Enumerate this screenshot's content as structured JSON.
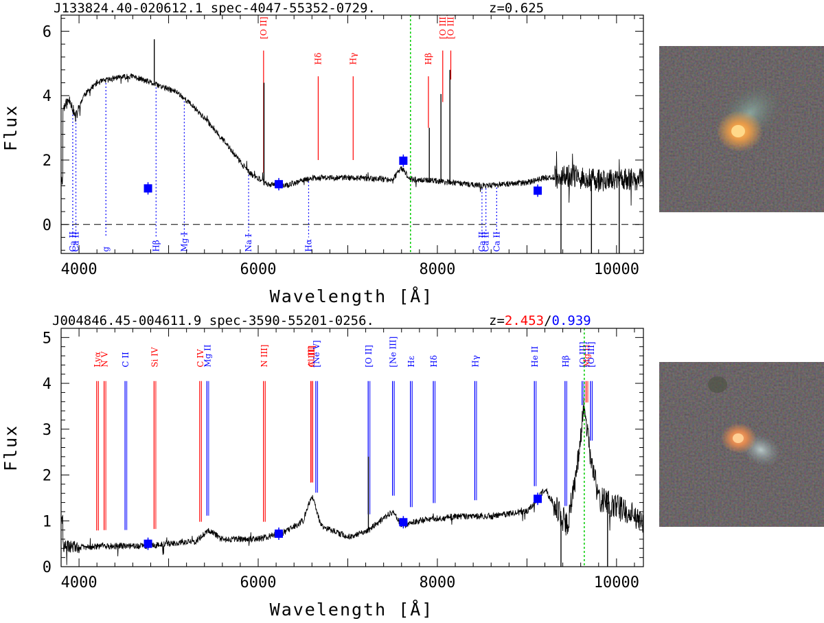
{
  "chart_data": [
    {
      "type": "line",
      "title": "J133824.40-020612.1  spec-4047-55352-0729.",
      "redshift_label": "z=0.625",
      "xlabel": "Wavelength [Å]",
      "ylabel": "Flux",
      "xlim": [
        3800,
        10300
      ],
      "ylim": [
        -0.9,
        6.5
      ],
      "xticks": [
        4000,
        6000,
        8000,
        10000
      ],
      "yticks": [
        0,
        2,
        4,
        6
      ],
      "zero_line": true,
      "marker_line_x": 7700,
      "spectrum_knots": [
        [
          3820,
          3.6
        ],
        [
          3900,
          3.9
        ],
        [
          3960,
          3.3
        ],
        [
          4050,
          4.0
        ],
        [
          4200,
          4.4
        ],
        [
          4400,
          4.55
        ],
        [
          4600,
          4.6
        ],
        [
          4800,
          4.4
        ],
        [
          4950,
          4.25
        ],
        [
          5100,
          4.1
        ],
        [
          5300,
          3.6
        ],
        [
          5500,
          3.0
        ],
        [
          5700,
          2.3
        ],
        [
          5900,
          1.6
        ],
        [
          6100,
          1.25
        ],
        [
          6300,
          1.2
        ],
        [
          6600,
          1.45
        ],
        [
          7000,
          1.45
        ],
        [
          7500,
          1.4
        ],
        [
          7600,
          1.75
        ],
        [
          7700,
          1.4
        ],
        [
          8000,
          1.35
        ],
        [
          8500,
          1.2
        ],
        [
          9000,
          1.3
        ],
        [
          9200,
          1.45
        ],
        [
          9500,
          1.5
        ],
        [
          9800,
          1.35
        ],
        [
          10300,
          1.4
        ]
      ],
      "spectrum_peaks": [
        [
          4840,
          5.75
        ],
        [
          6065,
          4.4
        ],
        [
          7910,
          3.0
        ],
        [
          8040,
          4.05
        ],
        [
          8140,
          4.8
        ],
        [
          9380,
          -0.9
        ],
        [
          9720,
          -0.9
        ],
        [
          10030,
          -0.9
        ]
      ],
      "photometry": [
        [
          4770,
          1.12
        ],
        [
          6230,
          1.25
        ],
        [
          7620,
          1.98
        ],
        [
          9120,
          1.05
        ]
      ],
      "emission_lines": [
        {
          "label": "[O II]",
          "x": 6060,
          "y0": 1.6,
          "y1": 5.8
        },
        {
          "label": "Hδ",
          "x": 6670,
          "y0": 2.0,
          "y1": 5.0
        },
        {
          "label": "Hγ",
          "x": 7060,
          "y0": 2.0,
          "y1": 5.0
        },
        {
          "label": "Hβ",
          "x": 7900,
          "y0": 3.0,
          "y1": 5.0
        },
        {
          "label": "[O III]",
          "x": 8060,
          "y0": 3.8,
          "y1": 5.8
        },
        {
          "label": "[O III]",
          "x": 8150,
          "y0": 4.5,
          "y1": 5.8
        }
      ],
      "absorption_lines": [
        {
          "label": "Ca II",
          "x": 3930
        },
        {
          "label": "Ca II",
          "x": 3965
        },
        {
          "label": "g",
          "x": 4300
        },
        {
          "label": "Hβ",
          "x": 4860
        },
        {
          "label": "Mg I",
          "x": 5175
        },
        {
          "label": "Na I",
          "x": 5893
        },
        {
          "label": "Hα",
          "x": 6563
        },
        {
          "label": "Ca II",
          "x": 8498
        },
        {
          "label": "Ca II",
          "x": 8542
        },
        {
          "label": "Ca II",
          "x": 8662
        }
      ]
    },
    {
      "type": "line",
      "title": "J004846.45-004611.9  spec-3590-55201-0256.",
      "redshift_prefix": "z=",
      "redshift_1": "2.453",
      "redshift_sep": "/",
      "redshift_2": "0.939",
      "xlabel": "Wavelength [Å]",
      "ylabel": "Flux",
      "xlim": [
        3800,
        10300
      ],
      "ylim": [
        0,
        5.2
      ],
      "xticks": [
        4000,
        6000,
        8000,
        10000
      ],
      "yticks": [
        0,
        1,
        2,
        3,
        4,
        5
      ],
      "marker_line_x": 9640,
      "spectrum_knots": [
        [
          3820,
          0.45
        ],
        [
          4000,
          0.42
        ],
        [
          4300,
          0.45
        ],
        [
          4700,
          0.45
        ],
        [
          5000,
          0.5
        ],
        [
          5300,
          0.55
        ],
        [
          5450,
          0.8
        ],
        [
          5600,
          0.6
        ],
        [
          6000,
          0.6
        ],
        [
          6300,
          0.75
        ],
        [
          6500,
          1.0
        ],
        [
          6600,
          1.55
        ],
        [
          6700,
          0.9
        ],
        [
          7000,
          0.65
        ],
        [
          7200,
          0.75
        ],
        [
          7300,
          0.9
        ],
        [
          7500,
          1.2
        ],
        [
          7600,
          0.9
        ],
        [
          7800,
          1.0
        ],
        [
          8200,
          1.1
        ],
        [
          8600,
          1.1
        ],
        [
          9000,
          1.2
        ],
        [
          9200,
          1.7
        ],
        [
          9350,
          1.2
        ],
        [
          9450,
          0.9
        ],
        [
          9550,
          2.0
        ],
        [
          9640,
          3.6
        ],
        [
          9700,
          2.5
        ],
        [
          9800,
          1.5
        ],
        [
          10300,
          1.0
        ]
      ],
      "spectrum_peaks": [
        [
          7230,
          2.4
        ],
        [
          9380,
          0.0
        ],
        [
          9900,
          0.0
        ]
      ],
      "photometry": [
        [
          4770,
          0.5
        ],
        [
          6230,
          0.72
        ],
        [
          7620,
          0.97
        ],
        [
          9120,
          1.48
        ]
      ],
      "lines_z1": [
        {
          "label": "Lyα",
          "x": 4198
        },
        {
          "label": "N V",
          "x": 4280
        },
        {
          "label": "Si IV",
          "x": 4838
        },
        {
          "label": "C IV",
          "x": 5348
        },
        {
          "label": "N III]",
          "x": 6060
        },
        {
          "label": "Al III",
          "x": 6588
        },
        {
          "label": "C III]",
          "x": 6590
        },
        {
          "label": "Mg II",
          "x": 9660
        }
      ],
      "lines_z2": [
        {
          "label": "C II",
          "x": 4514
        },
        {
          "label": "Mg II",
          "x": 5428
        },
        {
          "label": "[Ne V]",
          "x": 6644
        },
        {
          "label": "[O II]",
          "x": 7228
        },
        {
          "label": "[Ne III]",
          "x": 7500
        },
        {
          "label": "Hε",
          "x": 7700
        },
        {
          "label": "Hδ",
          "x": 7955
        },
        {
          "label": "Hγ",
          "x": 8418
        },
        {
          "label": "He II",
          "x": 9083
        },
        {
          "label": "Hβ",
          "x": 9425
        },
        {
          "label": "[O III]",
          "x": 9616
        },
        {
          "label": "[O III]",
          "x": 9710
        }
      ]
    }
  ],
  "colors": {
    "spectrum": "#000000",
    "emission": "#ff0000",
    "absorption": "#0000ff",
    "photometry": "#0000ff",
    "marker": "#00cc00",
    "z1": "#ff0000",
    "z2": "#0000ff"
  },
  "thumbnails": [
    {
      "name": "galaxy-cutout-1",
      "description_icon": "galaxy-image"
    },
    {
      "name": "galaxy-cutout-2",
      "description_icon": "galaxy-image"
    }
  ]
}
